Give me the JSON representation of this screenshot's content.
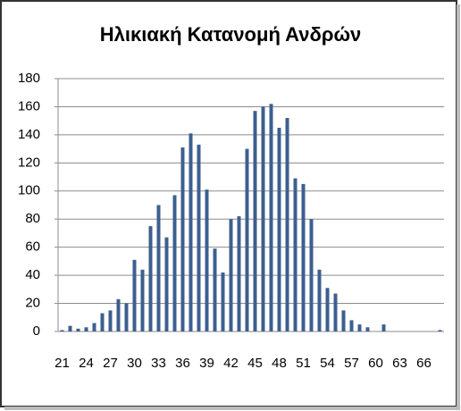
{
  "chart_data": {
    "type": "bar",
    "title": "Ηλικιακή Κατανομή Ανδρών",
    "categories": [
      "21",
      null,
      null,
      "24",
      null,
      null,
      "27",
      null,
      null,
      "30",
      null,
      null,
      "33",
      null,
      null,
      "36",
      null,
      null,
      "39",
      null,
      null,
      "42",
      null,
      null,
      "45",
      null,
      null,
      "48",
      null,
      null,
      "51",
      null,
      null,
      "54",
      null,
      null,
      "57",
      null,
      null,
      "60",
      null,
      null,
      "63",
      null,
      null,
      "66",
      null,
      null
    ],
    "values": [
      1,
      4,
      2,
      3,
      6,
      13,
      15,
      23,
      20,
      51,
      44,
      75,
      90,
      67,
      97,
      131,
      141,
      133,
      101,
      59,
      42,
      80,
      82,
      130,
      157,
      160,
      162,
      145,
      152,
      109,
      105,
      80,
      44,
      31,
      27,
      15,
      8,
      5,
      3,
      0,
      5,
      0,
      0,
      0,
      0,
      0,
      0,
      1
    ],
    "color": "#3d5f8f",
    "ylim": [
      0,
      180
    ],
    "yticks": [
      0,
      20,
      40,
      60,
      80,
      100,
      120,
      140,
      160,
      180
    ],
    "grid": true
  }
}
